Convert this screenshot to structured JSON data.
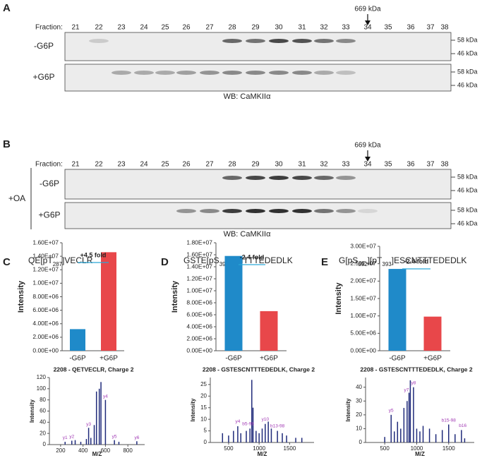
{
  "blots": [
    {
      "panel": "A",
      "marker_text": "669 kDa",
      "fraction_label": "Fraction:",
      "fractions": [
        "21",
        "22",
        "23",
        "24",
        "25",
        "26",
        "27",
        "28",
        "29",
        "30",
        "31",
        "32",
        "33",
        "34",
        "35",
        "36",
        "37",
        "38"
      ],
      "rows": [
        "-G6P",
        "+G6P"
      ],
      "markers": [
        "58 kDa",
        "46 kDa"
      ],
      "antibody": "WB: CaMKIIα"
    },
    {
      "panel": "B",
      "marker_text": "669 kDa",
      "fraction_label": "Fraction:",
      "fractions": [
        "21",
        "22",
        "23",
        "24",
        "25",
        "26",
        "27",
        "28",
        "29",
        "30",
        "31",
        "32",
        "33",
        "34",
        "35",
        "36",
        "37",
        "38"
      ],
      "rows": [
        "-G6P",
        "+G6P"
      ],
      "markers": [
        "58 kDa",
        "46 kDa"
      ],
      "antibody": "WB: CaMKIIα",
      "treatment": "+OA"
    }
  ],
  "chart_data": [
    {
      "type": "bar",
      "panel": "C",
      "title": [
        "QE[pT",
        "287",
        "]VECLR"
      ],
      "ylabel": "Intensity",
      "categories": [
        "-G6P",
        "+G6P"
      ],
      "values": [
        3200000,
        14600000
      ],
      "colors": [
        "#1f8ac9",
        "#e8474a"
      ],
      "annotation": "+4.5 fold",
      "ylim": [
        0,
        16000000
      ],
      "yticks": [
        {
          "value": 0,
          "label": "0.00E+00"
        },
        {
          "value": 2000000,
          "label": "2.00E+06"
        },
        {
          "value": 4000000,
          "label": "4.00E+06"
        },
        {
          "value": 6000000,
          "label": "6.00E+06"
        },
        {
          "value": 8000000,
          "label": "8.00E+06"
        },
        {
          "value": 10000000,
          "label": "1.00E+07"
        },
        {
          "value": 12000000,
          "label": "1.20E+07"
        },
        {
          "value": 14000000,
          "label": "1.40E+07"
        },
        {
          "value": 16000000,
          "label": "1.60E+07"
        }
      ]
    },
    {
      "type": "bar",
      "panel": "D",
      "title": [
        "GSTE[pS",
        "395",
        "]CNTTTEDEDLK"
      ],
      "ylabel": "Intensity",
      "categories": [
        "-G6P",
        "+G6P"
      ],
      "values": [
        15800000,
        6600000
      ],
      "colors": [
        "#1f8ac9",
        "#e8474a"
      ],
      "annotation": "-2.4 fold",
      "ylim": [
        0,
        18000000
      ],
      "yticks": [
        {
          "value": 0,
          "label": "0.00E+00"
        },
        {
          "value": 2000000,
          "label": "2.00E+06"
        },
        {
          "value": 4000000,
          "label": "4.00E+06"
        },
        {
          "value": 6000000,
          "label": "6.00E+06"
        },
        {
          "value": 8000000,
          "label": "8.00E+06"
        },
        {
          "value": 10000000,
          "label": "1.00E+07"
        },
        {
          "value": 12000000,
          "label": "1.20E+07"
        },
        {
          "value": 14000000,
          "label": "1.40E+07"
        },
        {
          "value": 16000000,
          "label": "1.60E+07"
        },
        {
          "value": 18000000,
          "label": "1.80E+07"
        }
      ]
    },
    {
      "type": "bar",
      "panel": "E",
      "title": [
        "G[pS",
        "392",
        "][pT",
        "393",
        "]ESCNTTTEDEDLK"
      ],
      "ylabel": "Intensity",
      "categories": [
        "-G6P",
        "+G6P"
      ],
      "values": [
        23500000,
        9800000
      ],
      "colors": [
        "#1f8ac9",
        "#e8474a"
      ],
      "annotation": "-2.4 fold",
      "ylim": [
        0,
        30000000
      ],
      "yticks": [
        {
          "value": 0,
          "label": "0.00E+00"
        },
        {
          "value": 5000000,
          "label": "5.00E+06"
        },
        {
          "value": 10000000,
          "label": "1.00E+07"
        },
        {
          "value": 15000000,
          "label": "1.50E+07"
        },
        {
          "value": 20000000,
          "label": "2.00E+07"
        },
        {
          "value": 25000000,
          "label": "2.50E+07"
        },
        {
          "value": 30000000,
          "label": "3.00E+07"
        }
      ]
    },
    {
      "type": "spectrum",
      "title": "2208 - QETVECLR, Charge 2",
      "xlabel": "M/Z",
      "ylabel": "Intensity",
      "color": "#1f2a7a",
      "xlim": [
        100,
        950
      ],
      "xticks": [
        200,
        400,
        600,
        800
      ],
      "ylim": [
        0,
        120
      ],
      "yticks": [
        0,
        20,
        40,
        60,
        80,
        100,
        120
      ],
      "x": [
        240,
        300,
        330,
        380,
        430,
        450,
        470,
        500,
        520,
        545,
        560,
        600,
        680,
        720,
        880
      ],
      "values": [
        5,
        7,
        8,
        5,
        10,
        30,
        12,
        35,
        95,
        100,
        112,
        80,
        8,
        5,
        6
      ],
      "peak_labels": [
        {
          "text": "y1",
          "x": 240,
          "y": 12
        },
        {
          "text": "y2",
          "x": 300,
          "y": 14
        },
        {
          "text": "y3",
          "x": 450,
          "y": 36
        },
        {
          "text": "y4",
          "x": 600,
          "y": 86
        },
        {
          "text": "y5",
          "x": 680,
          "y": 14
        },
        {
          "text": "y6",
          "x": 880,
          "y": 12
        }
      ]
    },
    {
      "type": "spectrum",
      "title": "2208 - GSTESCNTTTEDEDLK, Charge 2",
      "xlabel": "M/Z",
      "ylabel": "Intensity",
      "color": "#1f2a7a",
      "xlim": [
        200,
        1900
      ],
      "xticks": [
        500,
        1000,
        1500
      ],
      "ylim": [
        0,
        28
      ],
      "yticks": [
        0,
        5,
        10,
        15,
        20,
        25
      ],
      "x": [
        400,
        500,
        580,
        650,
        700,
        790,
        850,
        880,
        900,
        950,
        1000,
        1050,
        1100,
        1150,
        1200,
        1300,
        1380,
        1450,
        1600,
        1700
      ],
      "values": [
        4,
        3,
        5,
        7,
        4,
        5,
        6,
        27,
        15,
        5,
        4,
        6,
        8,
        9,
        6,
        5,
        4,
        3,
        2,
        2
      ],
      "peak_labels": [
        {
          "text": "y4",
          "x": 650,
          "y": 9
        },
        {
          "text": "b5-98",
          "x": 820,
          "y": 8
        },
        {
          "text": "y10",
          "x": 1100,
          "y": 10
        },
        {
          "text": "b13-98",
          "x": 1300,
          "y": 7
        }
      ]
    },
    {
      "type": "spectrum",
      "title": "2208 - GSTESCNTTTEDEDLK, Charge 2",
      "xlabel": "M/Z",
      "ylabel": "Intensity",
      "color": "#1f2a7a",
      "xlim": [
        200,
        1900
      ],
      "xticks": [
        500,
        1000,
        1500
      ],
      "ylim": [
        0,
        47
      ],
      "yticks": [
        0,
        10,
        20,
        30,
        40
      ],
      "x": [
        500,
        600,
        650,
        700,
        750,
        800,
        850,
        880,
        900,
        950,
        1000,
        1050,
        1100,
        1200,
        1300,
        1400,
        1500,
        1600,
        1700,
        1750
      ],
      "values": [
        4,
        20,
        8,
        15,
        10,
        25,
        30,
        36,
        45,
        40,
        10,
        8,
        12,
        10,
        6,
        9,
        13,
        6,
        9,
        3
      ],
      "peak_labels": [
        {
          "text": "y5",
          "x": 600,
          "y": 23
        },
        {
          "text": "y7",
          "x": 840,
          "y": 38
        },
        {
          "text": "y8",
          "x": 950,
          "y": 43
        },
        {
          "text": "b15-98",
          "x": 1500,
          "y": 16
        },
        {
          "text": "b16",
          "x": 1720,
          "y": 12
        }
      ]
    }
  ]
}
